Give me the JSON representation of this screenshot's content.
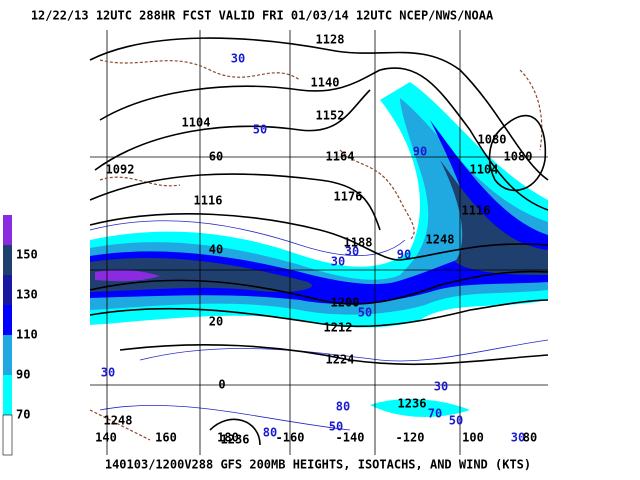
{
  "header": "12/22/13 12UTC   288HR  FCST VALID FRI 01/03/14 12UTC  NCEP/NWS/NOAA",
  "footer": "140103/1200V288 GFS 200MB HEIGHTS, ISOTACHS, AND WIND (KTS)",
  "colorbar_labels": [
    "150",
    "130",
    "110",
    "90",
    "70"
  ],
  "height_labels": [
    "1128",
    "1140",
    "1104",
    "1152",
    "1092",
    "1164",
    "1116",
    "1176",
    "1188",
    "1200",
    "1212",
    "1224",
    "1236",
    "1236",
    "1248",
    "1248",
    "1080",
    "1080",
    "1104",
    "1116"
  ],
  "isotach_labels": [
    "30",
    "50",
    "90",
    "30",
    "30",
    "90",
    "50",
    "30",
    "30",
    "80",
    "50",
    "70",
    "50",
    "80",
    "30"
  ],
  "lat_labels": [
    "60",
    "40",
    "20",
    "0"
  ],
  "lon_labels": [
    "140",
    "160",
    "180",
    "-160",
    "-140",
    "-120",
    "100",
    "80"
  ]
}
